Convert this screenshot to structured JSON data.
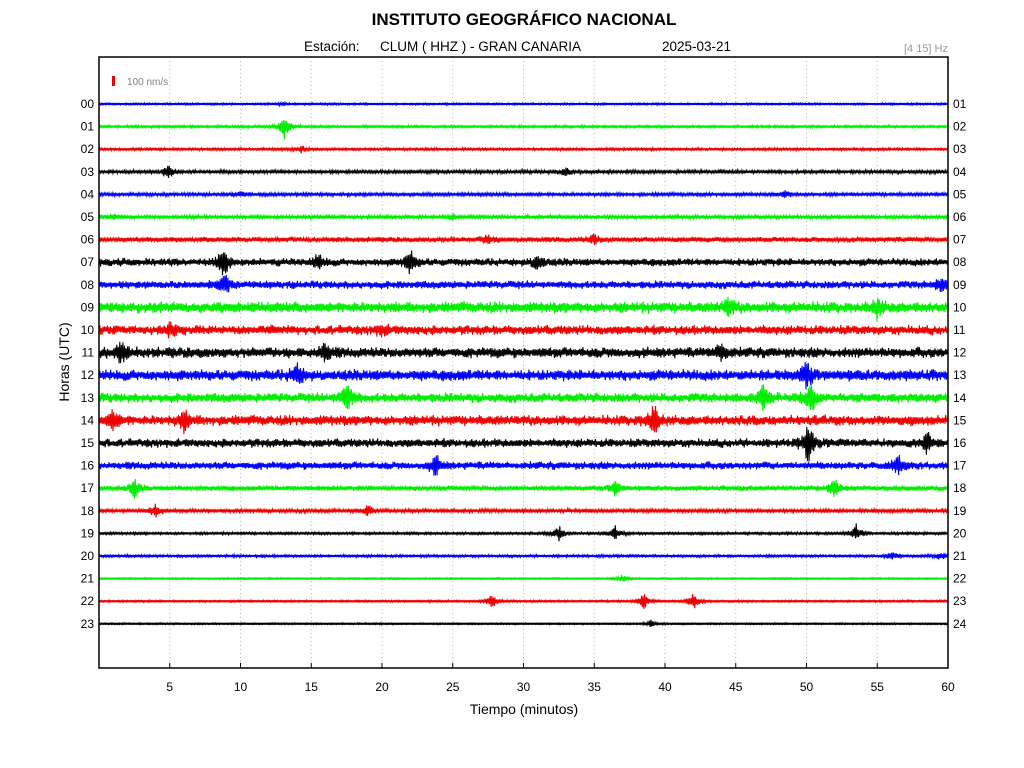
{
  "chart_data": {
    "type": "line",
    "title": "INSTITUTO GEOGRÁFICO NACIONAL",
    "subtitle": {
      "station_label": "Estación:",
      "station": "CLUM ( HHZ ) - GRAN CANARIA",
      "date": "2025-03-21"
    },
    "filter_label": "[4 15] Hz",
    "scale_label": "100 nm/s",
    "xlabel": "Tiempo (minutos)",
    "ylabel": "Horas (UTC)",
    "xlim": [
      0,
      60
    ],
    "x_ticks": [
      5,
      10,
      15,
      20,
      25,
      30,
      35,
      40,
      45,
      50,
      55,
      60
    ],
    "grid": true,
    "left_labels": [
      "00",
      "01",
      "02",
      "03",
      "04",
      "05",
      "06",
      "07",
      "08",
      "09",
      "10",
      "11",
      "12",
      "13",
      "14",
      "15",
      "16",
      "17",
      "18",
      "19",
      "20",
      "21",
      "22",
      "23"
    ],
    "right_labels": [
      "01",
      "02",
      "03",
      "04",
      "05",
      "06",
      "07",
      "08",
      "09",
      "10",
      "11",
      "12",
      "13",
      "14",
      "15",
      "16",
      "17",
      "18",
      "19",
      "20",
      "21",
      "22",
      "23",
      "24"
    ],
    "colors": [
      "#0000ff",
      "#00ee00",
      "#ee0000",
      "#000000"
    ],
    "series": [
      {
        "amplitude": 0.12,
        "events": [
          {
            "t": 13.0,
            "a": 0.15
          }
        ]
      },
      {
        "amplitude": 0.15,
        "events": [
          {
            "t": 13.1,
            "a": 1.3
          }
        ]
      },
      {
        "amplitude": 0.15,
        "events": [
          {
            "t": 14.3,
            "a": 0.35
          }
        ]
      },
      {
        "amplitude": 0.2,
        "events": [
          {
            "t": 4.9,
            "a": 0.9
          },
          {
            "t": 33.0,
            "a": 0.5
          }
        ]
      },
      {
        "amplitude": 0.2,
        "events": [
          {
            "t": 10.0,
            "a": 0.3
          },
          {
            "t": 48.5,
            "a": 0.35
          }
        ]
      },
      {
        "amplitude": 0.22,
        "events": [
          {
            "t": 1.0,
            "a": 0.35
          },
          {
            "t": 25.0,
            "a": 0.3
          }
        ]
      },
      {
        "amplitude": 0.3,
        "events": [
          {
            "t": 27.5,
            "a": 0.5
          },
          {
            "t": 35.0,
            "a": 0.5
          }
        ]
      },
      {
        "amplitude": 0.45,
        "events": [
          {
            "t": 8.8,
            "a": 1.6
          },
          {
            "t": 15.5,
            "a": 0.8
          },
          {
            "t": 22.0,
            "a": 1.2
          },
          {
            "t": 31.0,
            "a": 0.8
          }
        ]
      },
      {
        "amplitude": 0.45,
        "events": [
          {
            "t": 8.9,
            "a": 1.0
          },
          {
            "t": 59.5,
            "a": 0.6
          }
        ]
      },
      {
        "amplitude": 0.65,
        "events": [
          {
            "t": 44.5,
            "a": 0.8
          },
          {
            "t": 55.0,
            "a": 0.9
          }
        ]
      },
      {
        "amplitude": 0.55,
        "events": [
          {
            "t": 5.0,
            "a": 0.6
          },
          {
            "t": 20.0,
            "a": 0.5
          }
        ]
      },
      {
        "amplitude": 0.6,
        "events": [
          {
            "t": 1.5,
            "a": 1.2
          },
          {
            "t": 16.0,
            "a": 1.0
          },
          {
            "t": 44.0,
            "a": 0.9
          }
        ]
      },
      {
        "amplitude": 0.65,
        "events": [
          {
            "t": 14.0,
            "a": 1.0
          },
          {
            "t": 50.0,
            "a": 1.4
          }
        ]
      },
      {
        "amplitude": 0.55,
        "events": [
          {
            "t": 17.5,
            "a": 1.5
          },
          {
            "t": 47.0,
            "a": 1.4
          },
          {
            "t": 50.3,
            "a": 1.7
          }
        ]
      },
      {
        "amplitude": 0.6,
        "events": [
          {
            "t": 1.0,
            "a": 1.0
          },
          {
            "t": 6.0,
            "a": 1.0
          },
          {
            "t": 39.2,
            "a": 1.6
          }
        ]
      },
      {
        "amplitude": 0.5,
        "events": [
          {
            "t": 50.1,
            "a": 1.9
          },
          {
            "t": 58.5,
            "a": 1.0
          }
        ]
      },
      {
        "amplitude": 0.45,
        "events": [
          {
            "t": 23.8,
            "a": 1.0
          },
          {
            "t": 56.5,
            "a": 0.9
          }
        ]
      },
      {
        "amplitude": 0.3,
        "events": [
          {
            "t": 2.5,
            "a": 0.9
          },
          {
            "t": 36.5,
            "a": 0.8
          },
          {
            "t": 52.0,
            "a": 0.9
          }
        ]
      },
      {
        "amplitude": 0.22,
        "events": [
          {
            "t": 4.0,
            "a": 0.7
          },
          {
            "t": 19.0,
            "a": 0.5
          }
        ]
      },
      {
        "amplitude": 0.15,
        "events": [
          {
            "t": 32.5,
            "a": 0.8
          },
          {
            "t": 36.5,
            "a": 0.7
          },
          {
            "t": 53.5,
            "a": 0.9
          }
        ]
      },
      {
        "amplitude": 0.15,
        "events": [
          {
            "t": 56.0,
            "a": 0.5
          },
          {
            "t": 59.5,
            "a": 0.4
          }
        ]
      },
      {
        "amplitude": 0.1,
        "events": [
          {
            "t": 37.0,
            "a": 0.4
          }
        ]
      },
      {
        "amplitude": 0.12,
        "events": [
          {
            "t": 27.8,
            "a": 0.7
          },
          {
            "t": 38.5,
            "a": 0.8
          },
          {
            "t": 42.0,
            "a": 0.9
          }
        ]
      },
      {
        "amplitude": 0.1,
        "events": [
          {
            "t": 39.0,
            "a": 0.35
          }
        ]
      }
    ]
  }
}
